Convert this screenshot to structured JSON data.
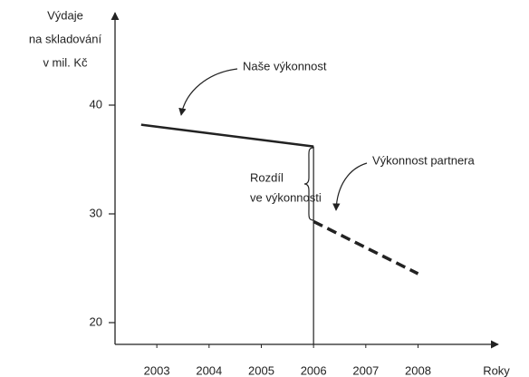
{
  "chart_data": {
    "type": "line",
    "ylabel": [
      "Výdaje",
      "na skladování",
      "v mil. Kč"
    ],
    "xlabel": "Roky",
    "xlim": [
      2002.2,
      2009.5
    ],
    "xticks": [
      2003,
      2004,
      2005,
      2006,
      2007,
      2008
    ],
    "ylim": [
      18,
      48
    ],
    "yticks": [
      20,
      30,
      40
    ],
    "annotation": [
      "Rozdíl",
      "ve výkonnosti"
    ],
    "series": [
      {
        "name": "Naše výkonnost",
        "color": "#222222",
        "line_style": "solid",
        "x": [
          2002.7,
          2006
        ],
        "values": [
          38.2,
          36.2
        ]
      },
      {
        "name": "Výkonnost partnera",
        "color": "#222222",
        "line_style": "dashed",
        "x": [
          2006,
          2008
        ],
        "values": [
          29.3,
          24.5
        ]
      }
    ]
  }
}
